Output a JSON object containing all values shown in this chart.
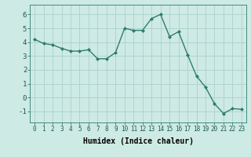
{
  "x": [
    0,
    1,
    2,
    3,
    4,
    5,
    6,
    7,
    8,
    9,
    10,
    11,
    12,
    13,
    14,
    15,
    16,
    17,
    18,
    19,
    20,
    21,
    22,
    23
  ],
  "y": [
    4.2,
    3.9,
    3.8,
    3.55,
    3.35,
    3.35,
    3.45,
    2.8,
    2.8,
    3.25,
    5.0,
    4.85,
    4.85,
    5.7,
    6.0,
    4.4,
    4.75,
    3.1,
    1.55,
    0.75,
    -0.45,
    -1.15,
    -0.8,
    -0.85
  ],
  "line_color": "#2e7d6e",
  "marker": "D",
  "markersize": 2,
  "linewidth": 1.0,
  "bg_color": "#ceeae5",
  "grid_color": "#afd4ce",
  "xlabel": "Humidex (Indice chaleur)",
  "xlabel_fontsize": 7,
  "xtick_labels": [
    "0",
    "1",
    "2",
    "3",
    "4",
    "5",
    "6",
    "7",
    "8",
    "9",
    "10",
    "11",
    "12",
    "13",
    "14",
    "15",
    "16",
    "17",
    "18",
    "19",
    "20",
    "21",
    "22",
    "23"
  ],
  "ytick_values": [
    -1,
    0,
    1,
    2,
    3,
    4,
    5,
    6
  ],
  "ylim": [
    -1.8,
    6.7
  ],
  "xlim": [
    -0.5,
    23.5
  ],
  "ytick_fontsize": 6.5,
  "xtick_fontsize": 5.5
}
